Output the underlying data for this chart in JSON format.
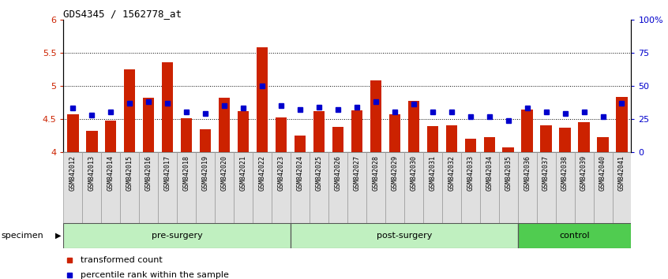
{
  "title": "GDS4345 / 1562778_at",
  "samples": [
    "GSM842012",
    "GSM842013",
    "GSM842014",
    "GSM842015",
    "GSM842016",
    "GSM842017",
    "GSM842018",
    "GSM842019",
    "GSM842020",
    "GSM842021",
    "GSM842022",
    "GSM842023",
    "GSM842024",
    "GSM842025",
    "GSM842026",
    "GSM842027",
    "GSM842028",
    "GSM842029",
    "GSM842030",
    "GSM842031",
    "GSM842032",
    "GSM842033",
    "GSM842034",
    "GSM842035",
    "GSM842036",
    "GSM842037",
    "GSM842038",
    "GSM842039",
    "GSM842040",
    "GSM842041"
  ],
  "bar_values": [
    4.57,
    4.32,
    4.47,
    5.25,
    4.82,
    5.35,
    4.51,
    4.35,
    4.82,
    4.62,
    5.58,
    4.52,
    4.25,
    4.62,
    4.38,
    4.63,
    5.08,
    4.57,
    4.77,
    4.39,
    4.4,
    4.2,
    4.22,
    4.07,
    4.64,
    4.4,
    4.37,
    4.45,
    4.22,
    4.83
  ],
  "percentile_values": [
    33,
    28,
    30,
    37,
    38,
    37,
    30,
    29,
    35,
    33,
    50,
    35,
    32,
    34,
    32,
    34,
    38,
    30,
    36,
    30,
    30,
    27,
    27,
    24,
    33,
    30,
    29,
    30,
    27,
    37
  ],
  "groups": [
    {
      "label": "pre-surgery",
      "start": 0,
      "end": 11
    },
    {
      "label": "post-surgery",
      "start": 12,
      "end": 23
    },
    {
      "label": "control",
      "start": 24,
      "end": 29
    }
  ],
  "group_colors": [
    "#c0f0c0",
    "#c0f0c0",
    "#50cc50"
  ],
  "ylim_left": [
    4.0,
    6.0
  ],
  "ylim_right": [
    0,
    100
  ],
  "yticks_left": [
    4.0,
    4.5,
    5.0,
    5.5,
    6.0
  ],
  "ytick_labels_left": [
    "4",
    "4.5",
    "5",
    "5.5",
    "6"
  ],
  "yticks_right": [
    0,
    25,
    50,
    75,
    100
  ],
  "ytick_labels_right": [
    "0",
    "25",
    "50",
    "75",
    "100%"
  ],
  "bar_color": "#CC2200",
  "dot_color": "#0000CC",
  "bar_bottom": 4.0,
  "grid_lines": [
    4.5,
    5.0,
    5.5
  ],
  "background_color": "#ffffff",
  "specimen_label": "specimen"
}
